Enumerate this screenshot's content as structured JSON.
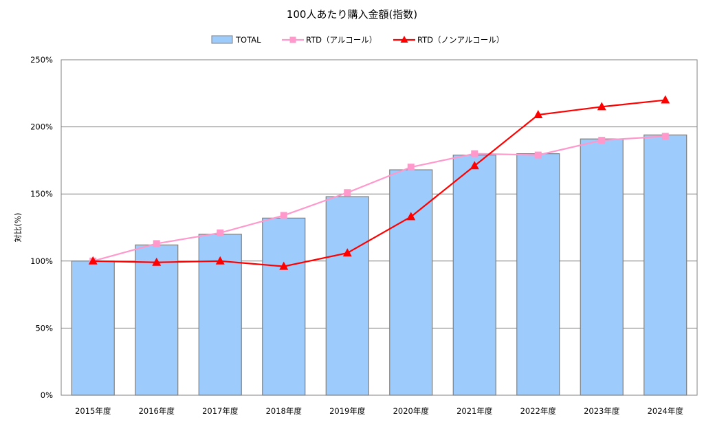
{
  "chart_data": {
    "type": "bar",
    "title": "100人あたり購入金額(指数)",
    "xlabel": "",
    "ylabel": "対比(%)",
    "categories": [
      "2015年度",
      "2016年度",
      "2017年度",
      "2018年度",
      "2019年度",
      "2020年度",
      "2021年度",
      "2022年度",
      "2023年度",
      "2024年度"
    ],
    "ylim": [
      0,
      250
    ],
    "yticks": [
      0,
      50,
      100,
      150,
      200,
      250
    ],
    "ytick_labels": [
      "0%",
      "50%",
      "100%",
      "150%",
      "200%",
      "250%"
    ],
    "grid": true,
    "legend_position": "top-center",
    "series": [
      {
        "name": "TOTAL",
        "kind": "bar",
        "color": "#9dcbfb",
        "edge_color": "#7f7f7f",
        "values": [
          100,
          112,
          120,
          132,
          148,
          168,
          179,
          180,
          191,
          194
        ]
      },
      {
        "name": "RTD（アルコール）",
        "kind": "line",
        "marker": "square",
        "color": "#ff99cc",
        "values": [
          100,
          113,
          121,
          134,
          151,
          170,
          180,
          179,
          190,
          193
        ]
      },
      {
        "name": "RTD（ノンアルコール）",
        "kind": "line",
        "marker": "triangle",
        "color": "#ff0000",
        "values": [
          100,
          99,
          100,
          96,
          106,
          133,
          171,
          209,
          215,
          220
        ]
      }
    ]
  }
}
